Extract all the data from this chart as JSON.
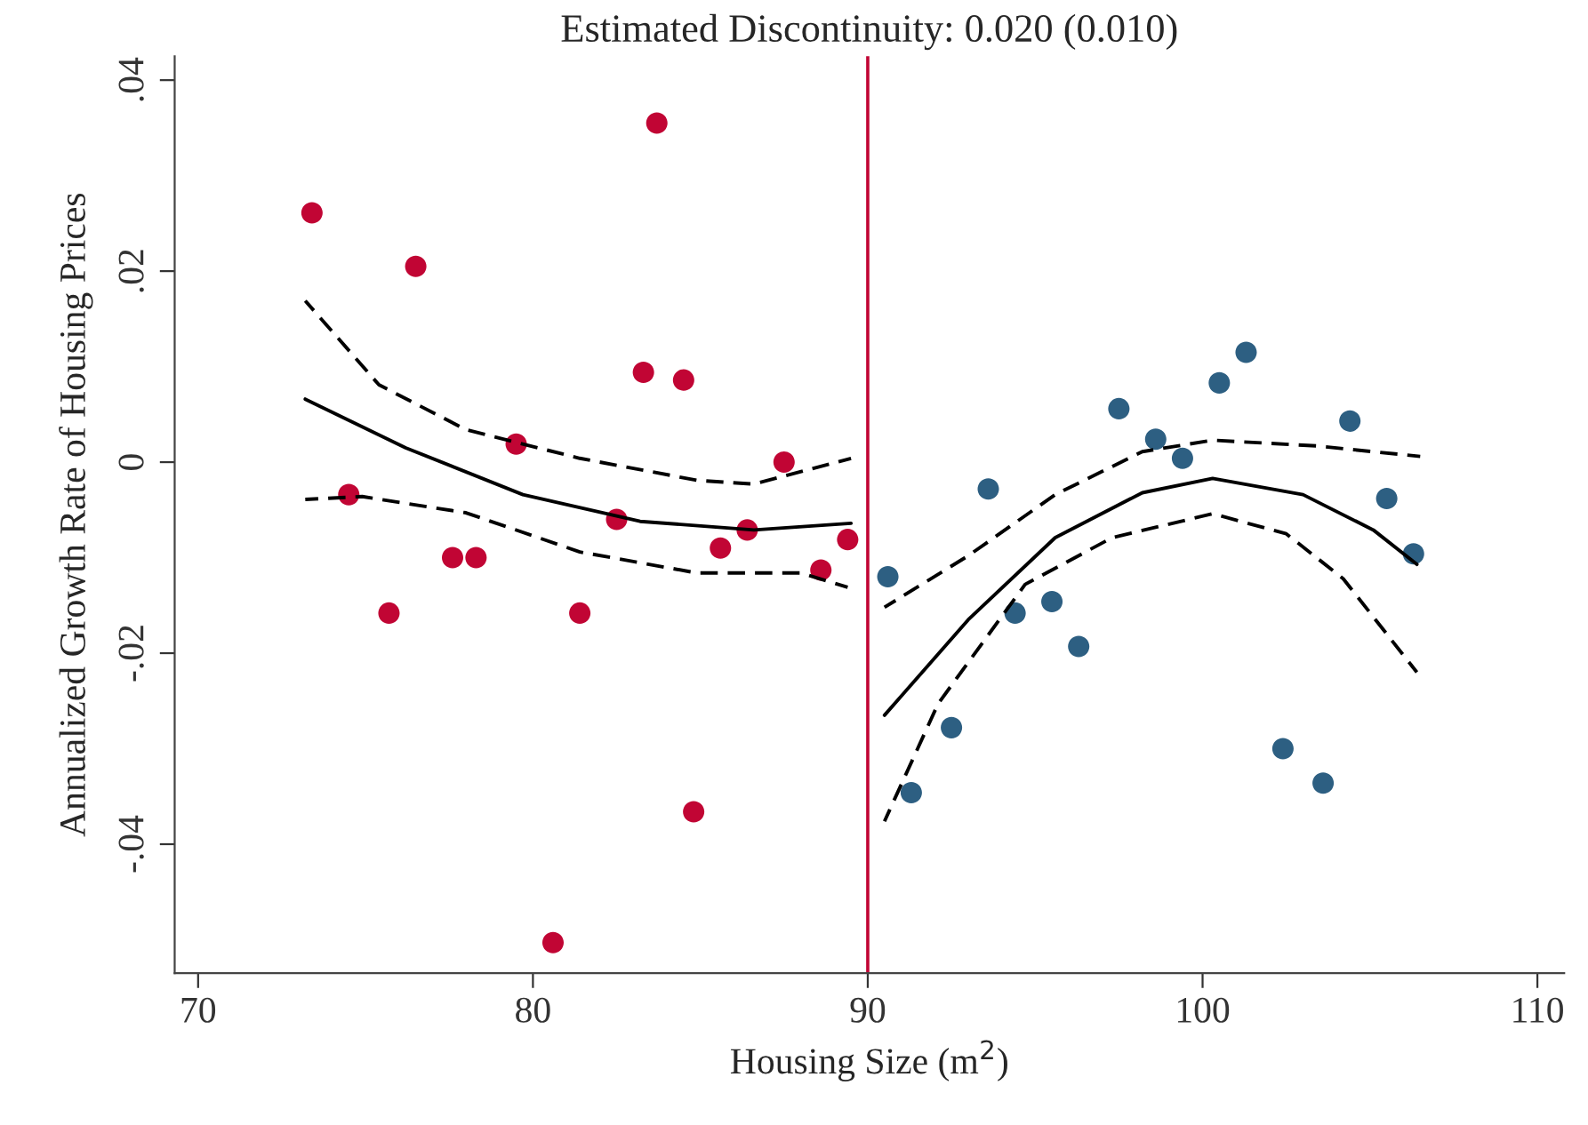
{
  "chart_data": {
    "type": "scatter",
    "title": "Estimated Discontinuity: 0.020 (0.010)",
    "xlabel": "Housing Size (m$^{2}$)",
    "ylabel": "Annualized Growth Rate of Housing Prices",
    "xlim": [
      69.3,
      110.8
    ],
    "ylim": [
      -0.0535,
      0.0425
    ],
    "xticks": [
      70,
      80,
      90,
      100,
      110
    ],
    "yticks": [
      {
        "value": -0.04,
        "label": "-.04"
      },
      {
        "value": -0.02,
        "label": "-.02"
      },
      {
        "value": 0,
        "label": "0"
      },
      {
        "value": 0.02,
        "label": ".02"
      },
      {
        "value": 0.04,
        "label": ".04"
      }
    ],
    "grid": false,
    "marker": "circle",
    "ref_lines": [
      {
        "axis": "x",
        "value": 90,
        "color": "#c10534",
        "line_style": "solid"
      }
    ],
    "series": [
      {
        "color": "#c10534",
        "x": [
          73.4,
          74.5,
          75.7,
          76.5,
          77.6,
          78.3,
          79.5,
          81.4,
          80.6,
          82.5,
          83.3,
          83.7,
          84.5,
          84.8,
          85.6,
          86.4,
          87.5,
          88.6,
          89.4
        ],
        "values": [
          0.0261,
          -0.0034,
          -0.0158,
          0.0205,
          -0.01,
          -0.01,
          0.0019,
          -0.0158,
          -0.0503,
          -0.006,
          0.0094,
          0.0355,
          0.0086,
          -0.0366,
          -0.009,
          -0.0071,
          0.0,
          -0.0113,
          -0.0081
        ]
      },
      {
        "color": "#2d5f82",
        "x": [
          90.6,
          91.3,
          92.5,
          93.6,
          94.4,
          95.5,
          96.3,
          97.5,
          98.6,
          99.4,
          100.5,
          101.3,
          102.4,
          103.6,
          104.4,
          105.5,
          106.3
        ],
        "values": [
          -0.012,
          -0.0346,
          -0.0278,
          -0.0028,
          -0.0158,
          -0.0146,
          -0.0193,
          0.0056,
          0.0024,
          0.0004,
          0.0083,
          0.0115,
          -0.03,
          -0.0336,
          0.0043,
          -0.0038,
          -0.0096
        ]
      },
      {
        "type": "line",
        "color": "#000000",
        "line_style": "solid",
        "marker": "none",
        "x": [
          73.2,
          76.2,
          79.7,
          83.2,
          86.6,
          89.5
        ],
        "values": [
          0.0066,
          0.0015,
          -0.0034,
          -0.0062,
          -0.0071,
          -0.0064
        ]
      },
      {
        "type": "line",
        "color": "#000000",
        "line_style": "dashed",
        "marker": "none",
        "x": [
          73.2,
          75.4,
          78.0,
          81.4,
          84.9,
          86.6,
          89.5
        ],
        "values": [
          0.0169,
          0.0081,
          0.0034,
          0.0004,
          -0.0019,
          -0.0023,
          0.0004
        ]
      },
      {
        "type": "line",
        "color": "#000000",
        "line_style": "dashed",
        "marker": "none",
        "x": [
          73.2,
          74.9,
          78.0,
          81.4,
          84.9,
          88.0,
          89.4
        ],
        "values": [
          -0.0039,
          -0.0036,
          -0.0053,
          -0.0094,
          -0.0116,
          -0.0116,
          -0.0131
        ]
      },
      {
        "type": "line",
        "color": "#000000",
        "line_style": "solid",
        "marker": "none",
        "x": [
          90.5,
          93.0,
          95.6,
          98.2,
          100.3,
          103.0,
          105.1,
          106.4
        ],
        "values": [
          -0.0265,
          -0.0165,
          -0.0079,
          -0.0032,
          -0.0017,
          -0.0034,
          -0.0071,
          -0.0107
        ]
      },
      {
        "type": "line",
        "color": "#000000",
        "line_style": "dashed",
        "marker": "none",
        "x": [
          90.5,
          93.0,
          95.6,
          98.2,
          100.3,
          103.4,
          106.5
        ],
        "values": [
          -0.0152,
          -0.0098,
          -0.0034,
          0.0011,
          0.0023,
          0.0017,
          0.0006
        ]
      },
      {
        "type": "line",
        "color": "#000000",
        "line_style": "dashed",
        "marker": "none",
        "x": [
          90.5,
          92.1,
          94.7,
          97.3,
          100.3,
          102.5,
          104.2,
          106.4
        ],
        "values": [
          -0.0376,
          -0.0253,
          -0.0128,
          -0.0079,
          -0.0054,
          -0.0075,
          -0.0122,
          -0.022
        ]
      }
    ]
  }
}
